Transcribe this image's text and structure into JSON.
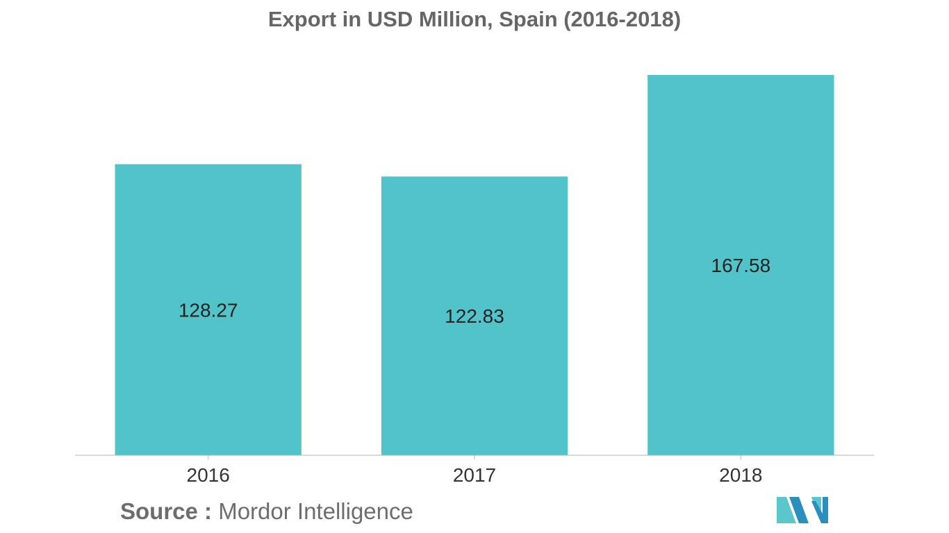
{
  "chart_data": {
    "type": "bar",
    "title": "Export in USD Million, Spain (2016-2018)",
    "categories": [
      "2016",
      "2017",
      "2018"
    ],
    "values": [
      128.27,
      122.83,
      167.58
    ],
    "value_labels": [
      "128.27",
      "122.83",
      "167.58"
    ],
    "xlabel": "",
    "ylabel": "",
    "ylim": [
      0,
      167.58
    ],
    "grid": false,
    "legend": "none"
  },
  "colors": {
    "bar": "#52c3c9",
    "axis": "#b3b3b3",
    "title": "#666666",
    "tick_label": "#333333",
    "source": "#6d6d6d",
    "logo_dark": "#2b8fbd",
    "logo_light": "#5cc6cd"
  },
  "source": {
    "label": "Source :",
    "value": "Mordor Intelligence"
  },
  "logo": {
    "icon": "mordor-intelligence-logo"
  }
}
